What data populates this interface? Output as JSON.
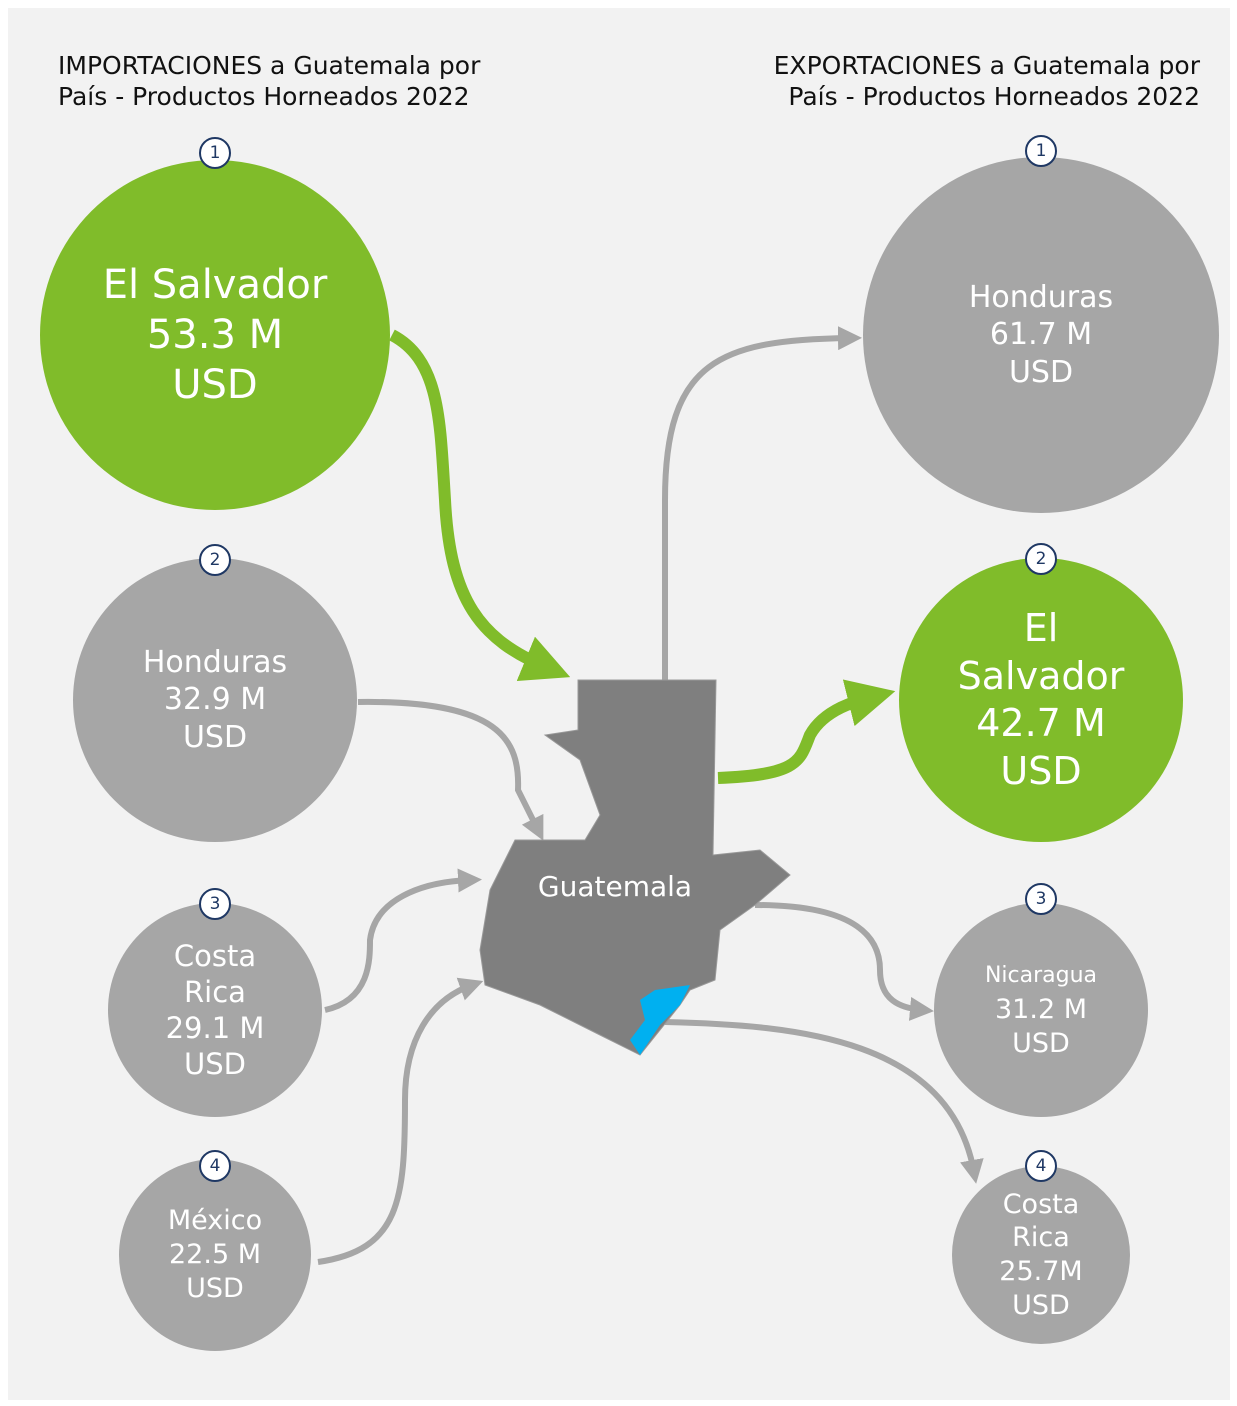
{
  "imports": {
    "title": "IMPORTACIONES a Guatemala por País - Productos Horneados 2022",
    "items": [
      {
        "rank": "1",
        "name": "El Salvador",
        "amount": "53.3 M",
        "unit": "USD"
      },
      {
        "rank": "2",
        "name": "Honduras",
        "amount": "32.9 M",
        "unit": "USD"
      },
      {
        "rank": "3",
        "name": "Costa Rica",
        "amount": "29.1 M",
        "unit": "USD"
      },
      {
        "rank": "4",
        "name": "México",
        "amount": "22.5 M",
        "unit": "USD"
      }
    ]
  },
  "exports": {
    "title": "EXPORTACIONES a Guatemala por País - Productos Horneados 2022",
    "items": [
      {
        "rank": "1",
        "name": "Honduras",
        "amount": "61.7 M",
        "unit": "USD"
      },
      {
        "rank": "2",
        "name": "El Salvador",
        "amount": "42.7 M",
        "unit": "USD"
      },
      {
        "rank": "3",
        "name": "Nicaragua",
        "amount": "31.2 M",
        "unit": "USD"
      },
      {
        "rank": "4",
        "name": "Costa Rica",
        "amount": "25.7M",
        "unit": "USD"
      }
    ]
  },
  "map": {
    "label": "Guatemala"
  }
}
